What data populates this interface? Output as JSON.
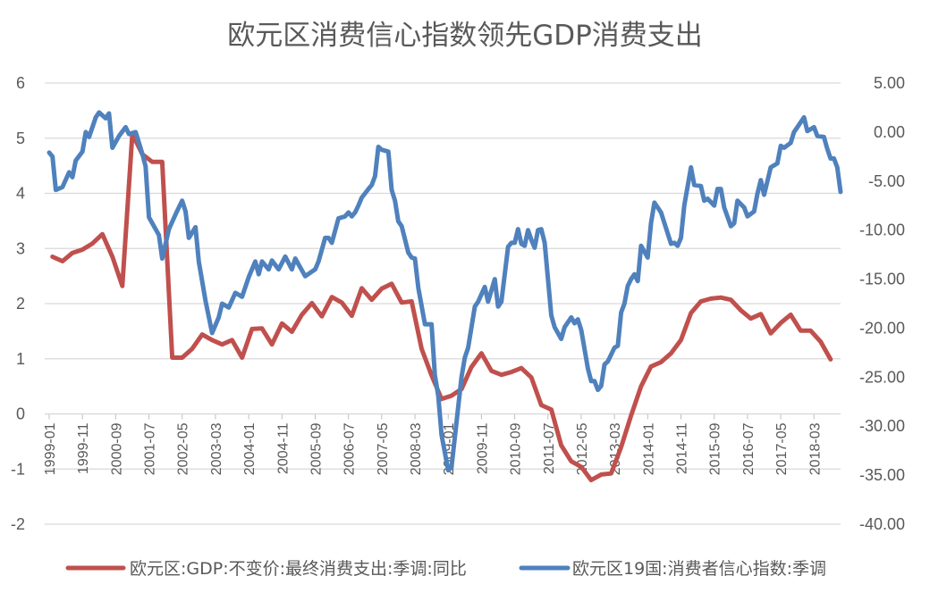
{
  "chart_data": {
    "type": "line",
    "title": "欧元区消费信心指数领先GDP消费支出",
    "x_range": [
      "1999-01",
      "2018-11"
    ],
    "x_tick_labels": [
      "1999-01",
      "1999-11",
      "2000-09",
      "2001-07",
      "2002-05",
      "2003-03",
      "2004-01",
      "2004-11",
      "2005-09",
      "2006-07",
      "2007-05",
      "2008-03",
      "2009-01",
      "2009-11",
      "2010-09",
      "2011-07",
      "2012-05",
      "2013-03",
      "2014-01",
      "2014-11",
      "2015-09",
      "2016-07",
      "2017-05",
      "2018-03"
    ],
    "y_left": {
      "range": [
        -2,
        6
      ],
      "ticks": [
        "6",
        "5",
        "4",
        "3",
        "2",
        "1",
        "0",
        "-1",
        "-2"
      ]
    },
    "y_right": {
      "range": [
        -40,
        5
      ],
      "ticks": [
        "5.00",
        "0.00",
        "-5.00",
        "-10.00",
        "-15.00",
        "-20.00",
        "-25.00",
        "-30.00",
        "-35.00",
        "-40.00"
      ]
    },
    "grid": true,
    "legend_position": "bottom",
    "series": [
      {
        "name": "欧元区:GDP:不变价:最终消费支出:季调:同比",
        "axis": "left",
        "color": "#C0504D",
        "points": [
          [
            "1999-02",
            2.85
          ],
          [
            "1999-05",
            2.77
          ],
          [
            "1999-08",
            2.92
          ],
          [
            "1999-11",
            2.98
          ],
          [
            "2000-02",
            3.09
          ],
          [
            "2000-05",
            3.26
          ],
          [
            "2000-08",
            2.85
          ],
          [
            "2000-11",
            2.32
          ],
          [
            "2001-02",
            5.08
          ],
          [
            "2001-05",
            4.71
          ],
          [
            "2001-08",
            4.57
          ],
          [
            "2001-11",
            4.57
          ],
          [
            "2002-02",
            1.02
          ],
          [
            "2002-05",
            1.02
          ],
          [
            "2002-08",
            1.18
          ],
          [
            "2002-11",
            1.44
          ],
          [
            "2003-02",
            1.34
          ],
          [
            "2003-05",
            1.26
          ],
          [
            "2003-08",
            1.34
          ],
          [
            "2003-11",
            1.02
          ],
          [
            "2004-02",
            1.54
          ],
          [
            "2004-05",
            1.55
          ],
          [
            "2004-08",
            1.26
          ],
          [
            "2004-11",
            1.64
          ],
          [
            "2005-02",
            1.49
          ],
          [
            "2005-05",
            1.8
          ],
          [
            "2005-08",
            2.01
          ],
          [
            "2005-11",
            1.77
          ],
          [
            "2006-02",
            2.12
          ],
          [
            "2006-05",
            2.02
          ],
          [
            "2006-08",
            1.78
          ],
          [
            "2006-11",
            2.28
          ],
          [
            "2007-02",
            2.07
          ],
          [
            "2007-05",
            2.27
          ],
          [
            "2007-08",
            2.36
          ],
          [
            "2007-11",
            2.02
          ],
          [
            "2008-02",
            2.04
          ],
          [
            "2008-05",
            1.18
          ],
          [
            "2008-08",
            0.7
          ],
          [
            "2008-11",
            0.27
          ],
          [
            "2009-02",
            0.33
          ],
          [
            "2009-05",
            0.45
          ],
          [
            "2009-08",
            0.85
          ],
          [
            "2009-11",
            1.1
          ],
          [
            "2010-02",
            0.78
          ],
          [
            "2010-05",
            0.71
          ],
          [
            "2010-08",
            0.76
          ],
          [
            "2010-11",
            0.83
          ],
          [
            "2011-02",
            0.66
          ],
          [
            "2011-05",
            0.16
          ],
          [
            "2011-08",
            0.08
          ],
          [
            "2011-11",
            -0.57
          ],
          [
            "2012-02",
            -0.86
          ],
          [
            "2012-05",
            -0.96
          ],
          [
            "2012-08",
            -1.2
          ],
          [
            "2012-11",
            -1.1
          ],
          [
            "2013-02",
            -1.08
          ],
          [
            "2013-05",
            -0.6
          ],
          [
            "2013-08",
            -0.03
          ],
          [
            "2013-11",
            0.5
          ],
          [
            "2014-02",
            0.86
          ],
          [
            "2014-05",
            0.94
          ],
          [
            "2014-08",
            1.1
          ],
          [
            "2014-11",
            1.34
          ],
          [
            "2015-02",
            1.83
          ],
          [
            "2015-05",
            2.04
          ],
          [
            "2015-08",
            2.09
          ],
          [
            "2015-11",
            2.11
          ],
          [
            "2016-02",
            2.07
          ],
          [
            "2016-05",
            1.88
          ],
          [
            "2016-08",
            1.73
          ],
          [
            "2016-11",
            1.81
          ],
          [
            "2017-02",
            1.46
          ],
          [
            "2017-05",
            1.65
          ],
          [
            "2017-08",
            1.8
          ],
          [
            "2017-11",
            1.51
          ],
          [
            "2018-02",
            1.51
          ],
          [
            "2018-05",
            1.31
          ],
          [
            "2018-08",
            0.99
          ]
        ]
      },
      {
        "name": "欧元区19国:消费者信心指数:季调",
        "axis": "right",
        "color": "#4F81BD",
        "points": [
          [
            "1999-01",
            -2.1
          ],
          [
            "1999-02",
            -2.5
          ],
          [
            "1999-03",
            -5.9
          ],
          [
            "1999-05",
            -5.6
          ],
          [
            "1999-07",
            -4.1
          ],
          [
            "1999-08",
            -4.6
          ],
          [
            "1999-09",
            -2.9
          ],
          [
            "1999-11",
            -2.0
          ],
          [
            "1999-12",
            0.0
          ],
          [
            "2000-01",
            -0.5
          ],
          [
            "2000-03",
            1.5
          ],
          [
            "2000-04",
            2.0
          ],
          [
            "2000-06",
            1.4
          ],
          [
            "2000-07",
            1.9
          ],
          [
            "2000-08",
            -1.6
          ],
          [
            "2000-10",
            -0.4
          ],
          [
            "2000-12",
            0.5
          ],
          [
            "2001-01",
            -0.2
          ],
          [
            "2001-03",
            0.0
          ],
          [
            "2001-05",
            -2.2
          ],
          [
            "2001-06",
            -3.5
          ],
          [
            "2001-07",
            -8.7
          ],
          [
            "2001-10",
            -10.5
          ],
          [
            "2001-11",
            -12.9
          ],
          [
            "2002-01",
            -9.9
          ],
          [
            "2002-03",
            -8.4
          ],
          [
            "2002-05",
            -7.0
          ],
          [
            "2002-06",
            -8.1
          ],
          [
            "2002-07",
            -10.8
          ],
          [
            "2002-09",
            -9.7
          ],
          [
            "2002-10",
            -13.2
          ],
          [
            "2002-12",
            -17.2
          ],
          [
            "2003-02",
            -20.5
          ],
          [
            "2003-04",
            -18.9
          ],
          [
            "2003-05",
            -17.5
          ],
          [
            "2003-07",
            -17.9
          ],
          [
            "2003-09",
            -16.4
          ],
          [
            "2003-11",
            -16.8
          ],
          [
            "2004-01",
            -14.8
          ],
          [
            "2004-03",
            -13.2
          ],
          [
            "2004-04",
            -14.5
          ],
          [
            "2004-05",
            -13.2
          ],
          [
            "2004-07",
            -14.0
          ],
          [
            "2004-08",
            -13.1
          ],
          [
            "2004-10",
            -14.0
          ],
          [
            "2004-12",
            -12.7
          ],
          [
            "2005-02",
            -14.0
          ],
          [
            "2005-03",
            -12.9
          ],
          [
            "2005-05",
            -14.1
          ],
          [
            "2005-06",
            -14.7
          ],
          [
            "2005-09",
            -14.0
          ],
          [
            "2005-10",
            -13.2
          ],
          [
            "2005-12",
            -10.8
          ],
          [
            "2006-01",
            -10.8
          ],
          [
            "2006-02",
            -11.3
          ],
          [
            "2006-04",
            -8.8
          ],
          [
            "2006-06",
            -8.6
          ],
          [
            "2006-07",
            -8.2
          ],
          [
            "2006-08",
            -8.6
          ],
          [
            "2006-09",
            -8.2
          ],
          [
            "2006-10",
            -7.5
          ],
          [
            "2006-11",
            -6.7
          ],
          [
            "2007-01",
            -5.8
          ],
          [
            "2007-02",
            -5.4
          ],
          [
            "2007-03",
            -4.5
          ],
          [
            "2007-04",
            -1.5
          ],
          [
            "2007-05",
            -1.8
          ],
          [
            "2007-07",
            -2.0
          ],
          [
            "2007-08",
            -5.9
          ],
          [
            "2007-09",
            -7.0
          ],
          [
            "2007-10",
            -9.1
          ],
          [
            "2007-11",
            -9.6
          ],
          [
            "2008-01",
            -12.3
          ],
          [
            "2008-02",
            -12.8
          ],
          [
            "2008-03",
            -12.9
          ],
          [
            "2008-04",
            -15.9
          ],
          [
            "2008-06",
            -19.6
          ],
          [
            "2008-08",
            -19.6
          ],
          [
            "2008-09",
            -24.8
          ],
          [
            "2008-10",
            -26.9
          ],
          [
            "2008-11",
            -30.9
          ],
          [
            "2009-01",
            -34.5
          ],
          [
            "2009-02",
            -34.2
          ],
          [
            "2009-05",
            -25.0
          ],
          [
            "2009-06",
            -23.0
          ],
          [
            "2009-07",
            -22.0
          ],
          [
            "2009-09",
            -17.8
          ],
          [
            "2009-10",
            -17.3
          ],
          [
            "2009-12",
            -15.8
          ],
          [
            "2010-01",
            -17.3
          ],
          [
            "2010-03",
            -15.0
          ],
          [
            "2010-04",
            -17.8
          ],
          [
            "2010-05",
            -17.3
          ],
          [
            "2010-07",
            -11.7
          ],
          [
            "2010-08",
            -11.3
          ],
          [
            "2010-09",
            -11.3
          ],
          [
            "2010-10",
            -9.9
          ],
          [
            "2010-11",
            -11.4
          ],
          [
            "2010-12",
            -11.6
          ],
          [
            "2011-01",
            -10.0
          ],
          [
            "2011-02",
            -11.0
          ],
          [
            "2011-03",
            -11.8
          ],
          [
            "2011-04",
            -10.0
          ],
          [
            "2011-05",
            -9.9
          ],
          [
            "2011-06",
            -11.3
          ],
          [
            "2011-08",
            -18.7
          ],
          [
            "2011-09",
            -19.9
          ],
          [
            "2011-11",
            -21.1
          ],
          [
            "2011-12",
            -19.9
          ],
          [
            "2012-02",
            -18.9
          ],
          [
            "2012-03",
            -19.5
          ],
          [
            "2012-04",
            -19.1
          ],
          [
            "2012-05",
            -20.2
          ],
          [
            "2012-07",
            -24.1
          ],
          [
            "2012-08",
            -25.4
          ],
          [
            "2012-09",
            -25.4
          ],
          [
            "2012-10",
            -26.3
          ],
          [
            "2012-11",
            -25.9
          ],
          [
            "2012-12",
            -23.7
          ],
          [
            "2013-01",
            -23.4
          ],
          [
            "2013-03",
            -22.0
          ],
          [
            "2013-04",
            -21.8
          ],
          [
            "2013-05",
            -18.4
          ],
          [
            "2013-06",
            -17.5
          ],
          [
            "2013-07",
            -15.7
          ],
          [
            "2013-08",
            -15.0
          ],
          [
            "2013-09",
            -14.5
          ],
          [
            "2013-10",
            -15.2
          ],
          [
            "2013-11",
            -11.6
          ],
          [
            "2014-01",
            -12.8
          ],
          [
            "2014-02",
            -9.3
          ],
          [
            "2014-03",
            -7.2
          ],
          [
            "2014-05",
            -8.2
          ],
          [
            "2014-08",
            -11.4
          ],
          [
            "2014-09",
            -11.3
          ],
          [
            "2014-10",
            -11.6
          ],
          [
            "2014-11",
            -10.8
          ],
          [
            "2014-12",
            -7.5
          ],
          [
            "2015-02",
            -3.6
          ],
          [
            "2015-03",
            -5.4
          ],
          [
            "2015-05",
            -5.5
          ],
          [
            "2015-06",
            -7.0
          ],
          [
            "2015-07",
            -6.8
          ],
          [
            "2015-09",
            -7.5
          ],
          [
            "2015-10",
            -5.8
          ],
          [
            "2015-11",
            -5.8
          ],
          [
            "2015-12",
            -7.7
          ],
          [
            "2016-02",
            -9.6
          ],
          [
            "2016-03",
            -9.3
          ],
          [
            "2016-04",
            -7.0
          ],
          [
            "2016-06",
            -7.7
          ],
          [
            "2016-07",
            -8.6
          ],
          [
            "2016-09",
            -8.1
          ],
          [
            "2016-10",
            -6.3
          ],
          [
            "2016-11",
            -4.9
          ],
          [
            "2016-12",
            -6.4
          ],
          [
            "2017-02",
            -3.6
          ],
          [
            "2017-04",
            -3.2
          ],
          [
            "2017-05",
            -1.4
          ],
          [
            "2017-06",
            -1.6
          ],
          [
            "2017-08",
            -1.1
          ],
          [
            "2017-09",
            0.0
          ],
          [
            "2017-10",
            0.5
          ],
          [
            "2017-12",
            1.5
          ],
          [
            "2018-01",
            0.1
          ],
          [
            "2018-03",
            0.5
          ],
          [
            "2018-04",
            -0.4
          ],
          [
            "2018-06",
            -0.5
          ],
          [
            "2018-07",
            -1.7
          ],
          [
            "2018-08",
            -2.7
          ],
          [
            "2018-09",
            -2.7
          ],
          [
            "2018-10",
            -3.6
          ],
          [
            "2018-11",
            -6.1
          ]
        ]
      }
    ]
  }
}
